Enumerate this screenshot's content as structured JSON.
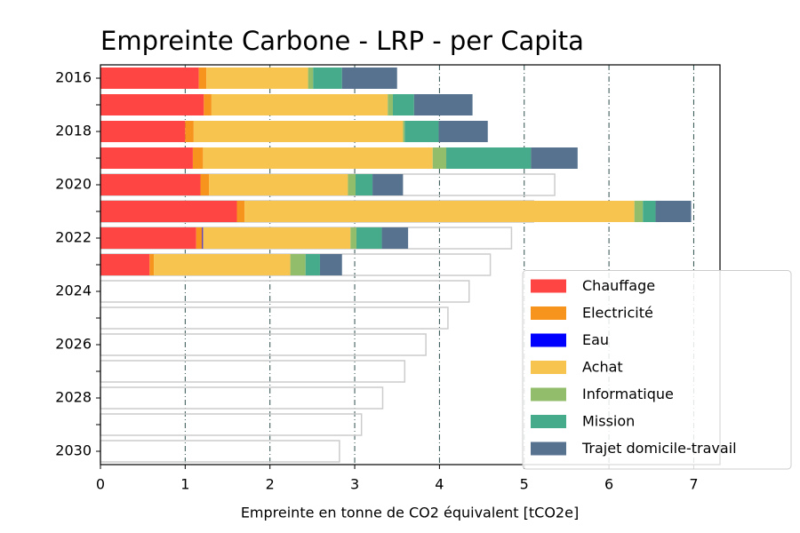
{
  "chart_data": {
    "type": "stacked-barh",
    "title": "Empreinte Carbone - LRP - per Capita",
    "x_label": "Empreinte en tonne de CO2 équivalent [tCO2e]",
    "categories": [
      "2016",
      null,
      "2018",
      null,
      "2020",
      null,
      "2022",
      null,
      "2024",
      null,
      "2026",
      null,
      "2028",
      null,
      "2030"
    ],
    "series": [
      {
        "name": "Chauffage",
        "color": "#ff4444",
        "values": [
          1.16,
          1.22,
          1.0,
          1.09,
          1.18,
          1.61,
          1.13,
          0.58,
          null,
          null,
          null,
          null,
          null,
          null,
          null
        ]
      },
      {
        "name": "Electricité",
        "color": "#f7941d",
        "values": [
          0.09,
          0.09,
          0.1,
          0.12,
          0.1,
          0.09,
          0.07,
          0.05,
          null,
          null,
          null,
          null,
          null,
          null,
          null
        ]
      },
      {
        "name": "Eau",
        "color": "#0000ff",
        "values": [
          0,
          0,
          0,
          0,
          0,
          0,
          0.01,
          0,
          null,
          null,
          null,
          null,
          null,
          null,
          null
        ]
      },
      {
        "name": "Achat",
        "color": "#f7c44f",
        "values": [
          1.2,
          2.08,
          2.47,
          2.71,
          1.64,
          4.6,
          1.74,
          1.61,
          null,
          null,
          null,
          null,
          null,
          null,
          null
        ]
      },
      {
        "name": "Informatique",
        "color": "#92bd6a",
        "values": [
          0.06,
          0.06,
          0.02,
          0.16,
          0.09,
          0.1,
          0.07,
          0.18,
          null,
          null,
          null,
          null,
          null,
          null,
          null
        ]
      },
      {
        "name": "Mission",
        "color": "#46ab8a",
        "values": [
          0.34,
          0.25,
          0.4,
          1.0,
          0.2,
          0.15,
          0.3,
          0.17,
          null,
          null,
          null,
          null,
          null,
          null,
          null
        ]
      },
      {
        "name": "Trajet domicile-travail",
        "color": "#56728f",
        "values": [
          0.65,
          0.69,
          0.58,
          0.55,
          0.36,
          0.42,
          0.31,
          0.26,
          null,
          null,
          null,
          null,
          null,
          null,
          null
        ]
      }
    ],
    "outline": {
      "color": "#cccccc",
      "values": [
        null,
        null,
        null,
        null,
        5.36,
        5.11,
        4.85,
        4.6,
        4.35,
        4.1,
        3.84,
        3.59,
        3.33,
        3.08,
        2.82
      ]
    },
    "xlim": [
      0,
      7.31
    ],
    "xticks": [
      0,
      1,
      2,
      3,
      4,
      5,
      6,
      7
    ],
    "grid": true,
    "legend": "lower right"
  }
}
